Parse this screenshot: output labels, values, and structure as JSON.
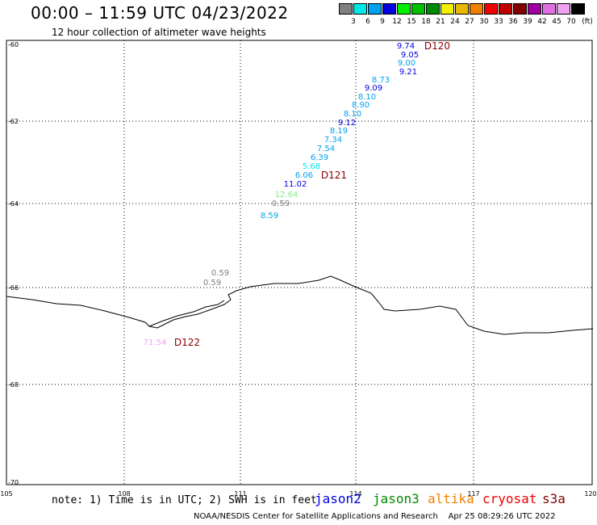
{
  "header": {
    "title": "00:00 – 11:59 UTC 04/23/2022",
    "subtitle": "12 hour collection of altimeter wave heights"
  },
  "legend": {
    "unit": "(ft)",
    "items": [
      {
        "label": "",
        "color": "#808080"
      },
      {
        "label": "3",
        "color": "#00e8e8"
      },
      {
        "label": "6",
        "color": "#00a0f0"
      },
      {
        "label": "9",
        "color": "#0000e0"
      },
      {
        "label": "12",
        "color": "#00f000"
      },
      {
        "label": "15",
        "color": "#00c000"
      },
      {
        "label": "18",
        "color": "#008800"
      },
      {
        "label": "21",
        "color": "#f0f000"
      },
      {
        "label": "24",
        "color": "#e8b800"
      },
      {
        "label": "27",
        "color": "#f08000"
      },
      {
        "label": "30",
        "color": "#f00000"
      },
      {
        "label": "33",
        "color": "#c00000"
      },
      {
        "label": "36",
        "color": "#800000"
      },
      {
        "label": "39",
        "color": "#a000a0"
      },
      {
        "label": "42",
        "color": "#e070e0"
      },
      {
        "label": "45",
        "color": "#f0a0f0"
      },
      {
        "label": "70",
        "color": "#000000"
      }
    ]
  },
  "map": {
    "lon_range": [
      105,
      120
    ],
    "lat_range": [
      -70,
      -60
    ],
    "lon_ticks": [
      "105",
      "108",
      "111",
      "114",
      "117",
      "120"
    ],
    "lat_ticks": [
      "-60",
      "-62",
      "-64",
      "-66",
      "-68",
      "-70"
    ],
    "grid": "dotted",
    "orbits": [
      {
        "label": "D120",
        "color": "#8b0000"
      },
      {
        "label": "D121",
        "color": "#8b0000"
      },
      {
        "label": "D122",
        "color": "#8b0000"
      }
    ],
    "observations": [
      {
        "value": "9.74",
        "color": "#0000e0"
      },
      {
        "value": "9.05",
        "color": "#0000e0"
      },
      {
        "value": "9.00",
        "color": "#00a0f0"
      },
      {
        "value": "9.21",
        "color": "#0000e0"
      },
      {
        "value": "8.73",
        "color": "#00a0f0"
      },
      {
        "value": "9.09",
        "color": "#0000e0"
      },
      {
        "value": "8.10",
        "color": "#00a0f0"
      },
      {
        "value": "8.90",
        "color": "#00a0f0"
      },
      {
        "value": "8.10",
        "color": "#00a0f0"
      },
      {
        "value": "9.12",
        "color": "#0000e0"
      },
      {
        "value": "8.19",
        "color": "#00a0f0"
      },
      {
        "value": "7.34",
        "color": "#00a0f0"
      },
      {
        "value": "7.54",
        "color": "#00a0f0"
      },
      {
        "value": "6.39",
        "color": "#00a0f0"
      },
      {
        "value": "5.68",
        "color": "#00e8e8"
      },
      {
        "value": "6.06",
        "color": "#00a0f0"
      },
      {
        "value": "11.02",
        "color": "#0000e0"
      },
      {
        "value": "12.64",
        "color": "#80f080"
      },
      {
        "value": "0.59",
        "color": "#808080"
      },
      {
        "value": "8.59",
        "color": "#00a0f0"
      },
      {
        "value": "0.59",
        "color": "#808080"
      },
      {
        "value": "0.59",
        "color": "#808080"
      },
      {
        "value": "71.54",
        "color": "#f0a0f0"
      }
    ]
  },
  "footer": {
    "note": "note: 1) Time is in UTC; 2) SWH is in feet",
    "satellites": [
      {
        "name": "jason2",
        "color": "#0000e0"
      },
      {
        "name": "jason3",
        "color": "#008800"
      },
      {
        "name": "altika",
        "color": "#f08000"
      },
      {
        "name": "cryosat",
        "color": "#f00000"
      },
      {
        "name": "s3a",
        "color": "#800000"
      }
    ],
    "credit": "NOAA/NESDIS Center for Satellite Applications and Research",
    "timestamp": "Apr 25 08:29:26 UTC 2022"
  }
}
